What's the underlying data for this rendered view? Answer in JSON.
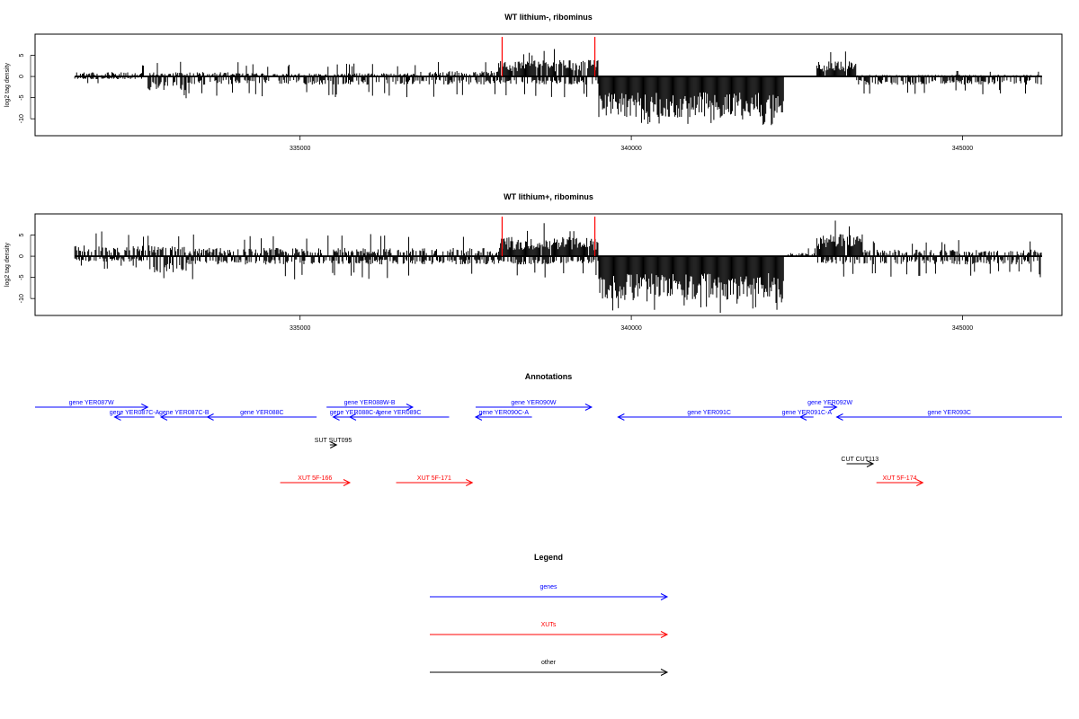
{
  "chart_data": [
    {
      "type": "bar",
      "title": "WT lithium-, ribominus",
      "ylabel": "log2 tag density",
      "xlim": [
        331000,
        346500
      ],
      "ylim": [
        -14,
        10
      ],
      "xticks": [
        335000,
        340000,
        345000
      ],
      "yticks": [
        5,
        0,
        -5,
        -10
      ],
      "data_range": [
        331600,
        346200
      ],
      "markers": [
        338050,
        339450
      ],
      "plus_strand_segments": [
        {
          "from": 331600,
          "to": 334200,
          "typical": 0.8,
          "peak": 3.5
        },
        {
          "from": 334200,
          "to": 336800,
          "typical": 0.6,
          "peak": 3.2
        },
        {
          "from": 336800,
          "to": 338000,
          "typical": 1.0,
          "peak": 3.5
        },
        {
          "from": 338000,
          "to": 339500,
          "typical": 3.0,
          "peak": 6.5
        },
        {
          "from": 339500,
          "to": 342800,
          "typical": 0.0,
          "peak": 0.0
        },
        {
          "from": 342800,
          "to": 343400,
          "typical": 2.8,
          "peak": 6.5
        },
        {
          "from": 343400,
          "to": 346200,
          "typical": 0.3,
          "peak": 1.5
        }
      ],
      "minus_strand_segments": [
        {
          "from": 331600,
          "to": 332700,
          "typical": 0.5,
          "peak": 2.0
        },
        {
          "from": 332700,
          "to": 333300,
          "typical": -2.5,
          "peak": -5.5
        },
        {
          "from": 333300,
          "to": 339500,
          "typical": -1.5,
          "peak": -5.0
        },
        {
          "from": 339500,
          "to": 342300,
          "typical": -7.5,
          "peak": -12.0
        },
        {
          "from": 342300,
          "to": 343400,
          "typical": 0.0,
          "peak": 0.0
        },
        {
          "from": 343400,
          "to": 346200,
          "typical": -1.5,
          "peak": -4.5
        }
      ]
    },
    {
      "type": "bar",
      "title": "WT lithium+, ribominus",
      "ylabel": "log2 tag density",
      "xlim": [
        331000,
        346500
      ],
      "ylim": [
        -14,
        10
      ],
      "xticks": [
        335000,
        340000,
        345000
      ],
      "yticks": [
        5,
        0,
        -5,
        -10
      ],
      "data_range": [
        331600,
        346200
      ],
      "markers": [
        338050,
        339450
      ],
      "plus_strand_segments": [
        {
          "from": 331600,
          "to": 333300,
          "typical": 2.0,
          "peak": 6.0
        },
        {
          "from": 333300,
          "to": 338000,
          "typical": 1.5,
          "peak": 5.5
        },
        {
          "from": 338000,
          "to": 339500,
          "typical": 3.5,
          "peak": 8.0
        },
        {
          "from": 339500,
          "to": 342300,
          "typical": 0.0,
          "peak": 0.0
        },
        {
          "from": 342300,
          "to": 342800,
          "typical": 0.6,
          "peak": 2.0
        },
        {
          "from": 342800,
          "to": 343500,
          "typical": 4.0,
          "peak": 8.5
        },
        {
          "from": 343500,
          "to": 346200,
          "typical": 1.2,
          "peak": 4.0
        }
      ],
      "minus_strand_segments": [
        {
          "from": 331600,
          "to": 332700,
          "typical": -1.0,
          "peak": -3.0
        },
        {
          "from": 332700,
          "to": 333300,
          "typical": -3.0,
          "peak": -7.0
        },
        {
          "from": 333300,
          "to": 339500,
          "typical": -1.5,
          "peak": -5.5
        },
        {
          "from": 339500,
          "to": 342300,
          "typical": -8.0,
          "peak": -13.5
        },
        {
          "from": 342300,
          "to": 342800,
          "typical": 0.0,
          "peak": 0.0
        },
        {
          "from": 342800,
          "to": 346200,
          "typical": -1.5,
          "peak": -5.0
        }
      ]
    },
    {
      "type": "annotation_track",
      "title": "Annotations",
      "xlim": [
        331000,
        346500
      ],
      "features": [
        {
          "label": "gene YER087W",
          "kind": "genes",
          "strand": "+",
          "start": 331000,
          "end": 332700,
          "row": 0
        },
        {
          "label": "gene YER087C-A",
          "kind": "genes",
          "strand": "-",
          "start": 332200,
          "end": 332800,
          "row": 1
        },
        {
          "label": "gene YER087C-B",
          "kind": "genes",
          "strand": "-",
          "start": 332900,
          "end": 333600,
          "row": 1
        },
        {
          "label": "gene YER088C",
          "kind": "genes",
          "strand": "-",
          "start": 333600,
          "end": 335250,
          "row": 1
        },
        {
          "label": "gene YER088W-B",
          "kind": "genes",
          "strand": "+",
          "start": 335400,
          "end": 336700,
          "row": 0
        },
        {
          "label": "gene YER088C-A",
          "kind": "genes",
          "strand": "-",
          "start": 335500,
          "end": 336150,
          "row": 1
        },
        {
          "label": "gene YER089C",
          "kind": "genes",
          "strand": "-",
          "start": 335750,
          "end": 337250,
          "row": 1
        },
        {
          "label": "gene YER090W",
          "kind": "genes",
          "strand": "+",
          "start": 337650,
          "end": 339400,
          "row": 0
        },
        {
          "label": "gene YER090C-A",
          "kind": "genes",
          "strand": "-",
          "start": 337650,
          "end": 338500,
          "row": 1
        },
        {
          "label": "gene YER091C",
          "kind": "genes",
          "strand": "-",
          "start": 339800,
          "end": 342550,
          "row": 1
        },
        {
          "label": "gene YER091C-A",
          "kind": "genes",
          "strand": "-",
          "start": 342550,
          "end": 342750,
          "row": 1
        },
        {
          "label": "gene YER092W",
          "kind": "genes",
          "strand": "+",
          "start": 342900,
          "end": 343100,
          "row": 0
        },
        {
          "label": "gene YER093C",
          "kind": "genes",
          "strand": "-",
          "start": 343100,
          "end": 346500,
          "row": 1
        },
        {
          "label": "SUT SUT095",
          "kind": "other",
          "strand": "+",
          "start": 335450,
          "end": 335550,
          "row": 2
        },
        {
          "label": "CUT CUT113",
          "kind": "other",
          "strand": "+",
          "start": 343250,
          "end": 343650,
          "row": 3
        },
        {
          "label": "XUT 5F-166",
          "kind": "XUTs",
          "strand": "+",
          "start": 334700,
          "end": 335750,
          "row": 4
        },
        {
          "label": "XUT 5F-171",
          "kind": "XUTs",
          "strand": "+",
          "start": 336450,
          "end": 337600,
          "row": 4
        },
        {
          "label": "XUT 5F-174",
          "kind": "XUTs",
          "strand": "+",
          "start": 343700,
          "end": 344400,
          "row": 4
        }
      ]
    },
    {
      "type": "legend",
      "title": "Legend",
      "items": [
        {
          "label": "genes",
          "color": "#0000ff"
        },
        {
          "label": "XUTs",
          "color": "#ff0000"
        },
        {
          "label": "other",
          "color": "#000000"
        }
      ]
    }
  ]
}
